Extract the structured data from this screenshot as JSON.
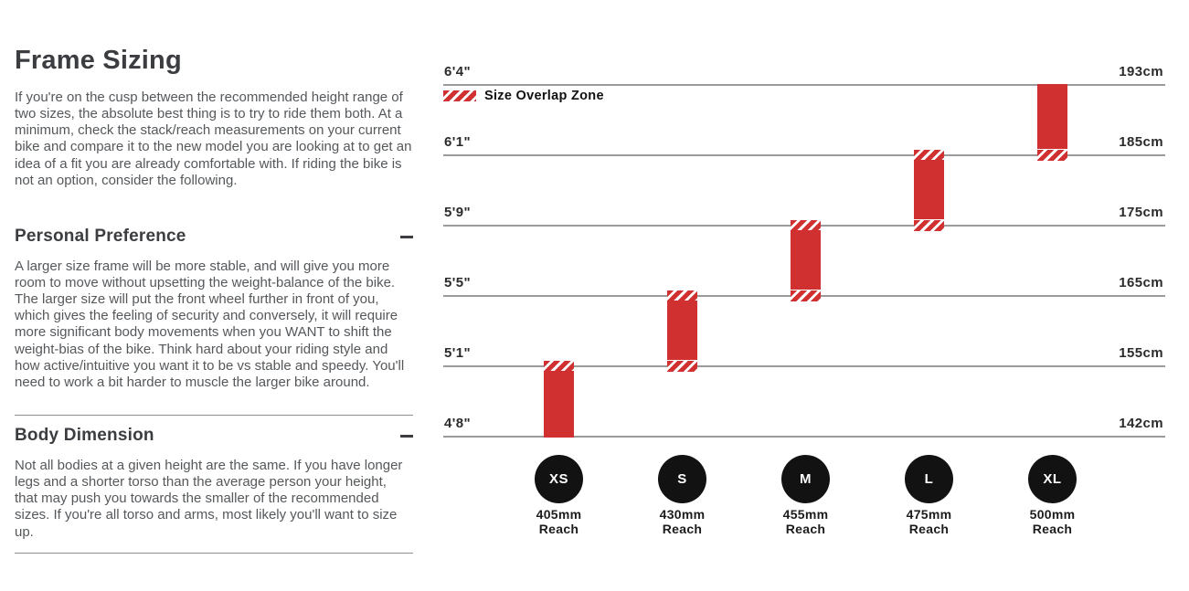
{
  "page": {
    "title": "Frame Sizing",
    "intro": "If you're on the cusp between the recommended height range of two sizes, the absolute best thing is to try to ride them both. At a minimum, check the stack/reach measurements on your current bike and compare it to the new model you are looking at to get an idea of a fit you are already comfortable with. If riding the bike is not an option, consider the following.",
    "sections": [
      {
        "heading": "Personal Preference",
        "toggle": "collapse",
        "body": "A larger size frame will be more stable, and will give you more room to move without upsetting the weight-balance of the bike. The larger size will put the front wheel further in front of you, which gives the feeling of security and conversely, it will require more significant body movements when you WANT to shift the weight-bias of the bike. Think hard about your riding style and how active/intuitive you want it to be vs stable and speedy. You'll need to work a bit harder to muscle the larger bike around."
      },
      {
        "heading": "Body Dimension",
        "toggle": "collapse",
        "body": "Not all bodies at a given height are the same. If you have longer legs and a shorter torso than the average person your height, that may push you towards the smaller of the recommended sizes. If you're all torso and arms, most likely you'll want to size up."
      }
    ]
  },
  "chart_data": {
    "type": "bar",
    "subtype": "vertical-range-bars",
    "title": "",
    "legend": {
      "label": "Size Overlap Zone",
      "swatch": "red-hatch",
      "position": "top-left"
    },
    "axis_left_labels": [
      "6'4\"",
      "6'1\"",
      "5'9\"",
      "5'5\"",
      "5'1\"",
      "4'8\""
    ],
    "axis_right_labels": [
      "193cm",
      "185cm",
      "175cm",
      "165cm",
      "155cm",
      "142cm"
    ],
    "grid": "horizontal-lines-only",
    "reach_word": "Reach",
    "sizes": [
      {
        "label": "XS",
        "reach_mm": "405mm",
        "top_row": 4,
        "bottom_row": 5,
        "overlap_top": true,
        "overlap_bottom": false,
        "height_range": "4'8\"-5'1\" (142cm-155cm)"
      },
      {
        "label": "S",
        "reach_mm": "430mm",
        "top_row": 3,
        "bottom_row": 4,
        "overlap_top": true,
        "overlap_bottom": true,
        "height_range": "5'1\"-5'5\" (155cm-165cm)"
      },
      {
        "label": "M",
        "reach_mm": "455mm",
        "top_row": 2,
        "bottom_row": 3,
        "overlap_top": true,
        "overlap_bottom": true,
        "height_range": "5'5\"-5'9\" (165cm-175cm)"
      },
      {
        "label": "L",
        "reach_mm": "475mm",
        "top_row": 1,
        "bottom_row": 2,
        "overlap_top": true,
        "overlap_bottom": true,
        "height_range": "5'9\"-6'1\" (175cm-185cm)"
      },
      {
        "label": "XL",
        "reach_mm": "500mm",
        "top_row": 0,
        "bottom_row": 1,
        "overlap_top": false,
        "overlap_bottom": true,
        "height_range": "6'1\"-6'4\" (185cm-193cm)"
      }
    ],
    "colors": {
      "bar_red": "#d13030",
      "gridline": "#9a9a9a",
      "circle_black": "#121212"
    }
  }
}
